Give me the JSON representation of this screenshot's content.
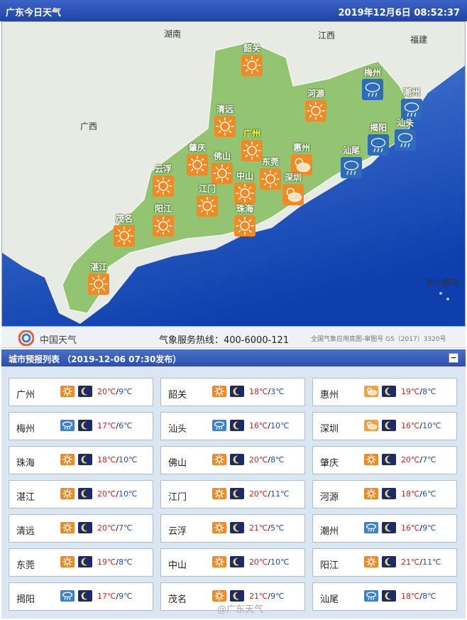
{
  "header": {
    "title": "广东今日天气",
    "datetime": "2019年12月6日   08:52:37"
  },
  "map": {
    "regions": [
      "湖南",
      "江西",
      "福建",
      "广西",
      "东沙群岛"
    ],
    "cities": [
      {
        "name": "韶关",
        "icon": "sun"
      },
      {
        "name": "河源",
        "icon": "sun"
      },
      {
        "name": "梅州",
        "icon": "rain"
      },
      {
        "name": "潮州",
        "icon": "rain"
      },
      {
        "name": "清远",
        "icon": "sun"
      },
      {
        "name": "广州",
        "icon": "sun",
        "highlight": true
      },
      {
        "name": "肇庆",
        "icon": "sun"
      },
      {
        "name": "佛山",
        "icon": "sun"
      },
      {
        "name": "惠州",
        "icon": "cloudy"
      },
      {
        "name": "揭阳",
        "icon": "rain"
      },
      {
        "name": "汕头",
        "icon": "rain"
      },
      {
        "name": "汕尾",
        "icon": "rain"
      },
      {
        "name": "云浮",
        "icon": "sun"
      },
      {
        "name": "东莞",
        "icon": "sun"
      },
      {
        "name": "深圳",
        "icon": "cloudy"
      },
      {
        "name": "中山",
        "icon": "sun"
      },
      {
        "name": "江门",
        "icon": "sun"
      },
      {
        "name": "阳江",
        "icon": "sun"
      },
      {
        "name": "茂名",
        "icon": "sun"
      },
      {
        "name": "珠海",
        "icon": "sun"
      },
      {
        "name": "湛江",
        "icon": "sun"
      }
    ]
  },
  "footer": {
    "logo_text": "中国天气",
    "hotline": "气象服务热线：400-6000-121",
    "map_note": "全国气象应用底图-审图号 GS（2017）3320号"
  },
  "list": {
    "title": "城市预报列表 （2019-12-06  07:30发布）",
    "collapse": "−",
    "cities": [
      {
        "name": "广州",
        "icon": "sun",
        "hi": "20℃",
        "lo": "9℃"
      },
      {
        "name": "韶关",
        "icon": "sun",
        "hi": "18℃",
        "lo": "3℃"
      },
      {
        "name": "惠州",
        "icon": "cloudy",
        "hi": "19℃",
        "lo": "8℃"
      },
      {
        "name": "梅州",
        "icon": "rain",
        "hi": "17℃",
        "lo": "6℃"
      },
      {
        "name": "汕头",
        "icon": "rain",
        "hi": "16℃",
        "lo": "10℃"
      },
      {
        "name": "深圳",
        "icon": "cloudy",
        "hi": "16℃",
        "lo": "10℃"
      },
      {
        "name": "珠海",
        "icon": "sun",
        "hi": "18℃",
        "lo": "10℃"
      },
      {
        "name": "佛山",
        "icon": "sun",
        "hi": "20℃",
        "lo": "8℃"
      },
      {
        "name": "肇庆",
        "icon": "sun",
        "hi": "20℃",
        "lo": "7℃"
      },
      {
        "name": "湛江",
        "icon": "sun",
        "hi": "20℃",
        "lo": "10℃"
      },
      {
        "name": "江门",
        "icon": "sun",
        "hi": "20℃",
        "lo": "11℃"
      },
      {
        "name": "河源",
        "icon": "sun",
        "hi": "18℃",
        "lo": "6℃"
      },
      {
        "name": "清远",
        "icon": "sun",
        "hi": "20℃",
        "lo": "7℃"
      },
      {
        "name": "云浮",
        "icon": "sun",
        "hi": "21℃",
        "lo": "5℃"
      },
      {
        "name": "潮州",
        "icon": "rain",
        "hi": "16℃",
        "lo": "9℃"
      },
      {
        "name": "东莞",
        "icon": "sun",
        "hi": "19℃",
        "lo": "8℃"
      },
      {
        "name": "中山",
        "icon": "sun",
        "hi": "20℃",
        "lo": "10℃"
      },
      {
        "name": "阳江",
        "icon": "sun",
        "hi": "21℃",
        "lo": "11℃"
      },
      {
        "name": "揭阳",
        "icon": "rain",
        "hi": "17℃",
        "lo": "9℃"
      },
      {
        "name": "茂名",
        "icon": "sun",
        "hi": "21℃",
        "lo": "9℃"
      },
      {
        "name": "汕尾",
        "icon": "rain",
        "hi": "18℃",
        "lo": "8℃"
      }
    ]
  },
  "watermark": "@广东天气"
}
